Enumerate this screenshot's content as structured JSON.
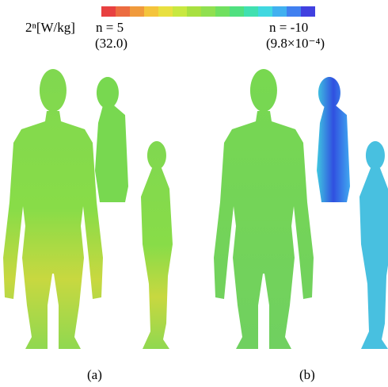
{
  "colorbar": {
    "unit_label": "2ⁿ[W/kg]",
    "max_label": "n = 5",
    "max_value_label": "(32.0)",
    "min_label": "n = -10",
    "min_value_label": "(9.8×10⁻⁴)"
  },
  "panels": [
    {
      "label": "(a)"
    },
    {
      "label": "(b)"
    }
  ]
}
